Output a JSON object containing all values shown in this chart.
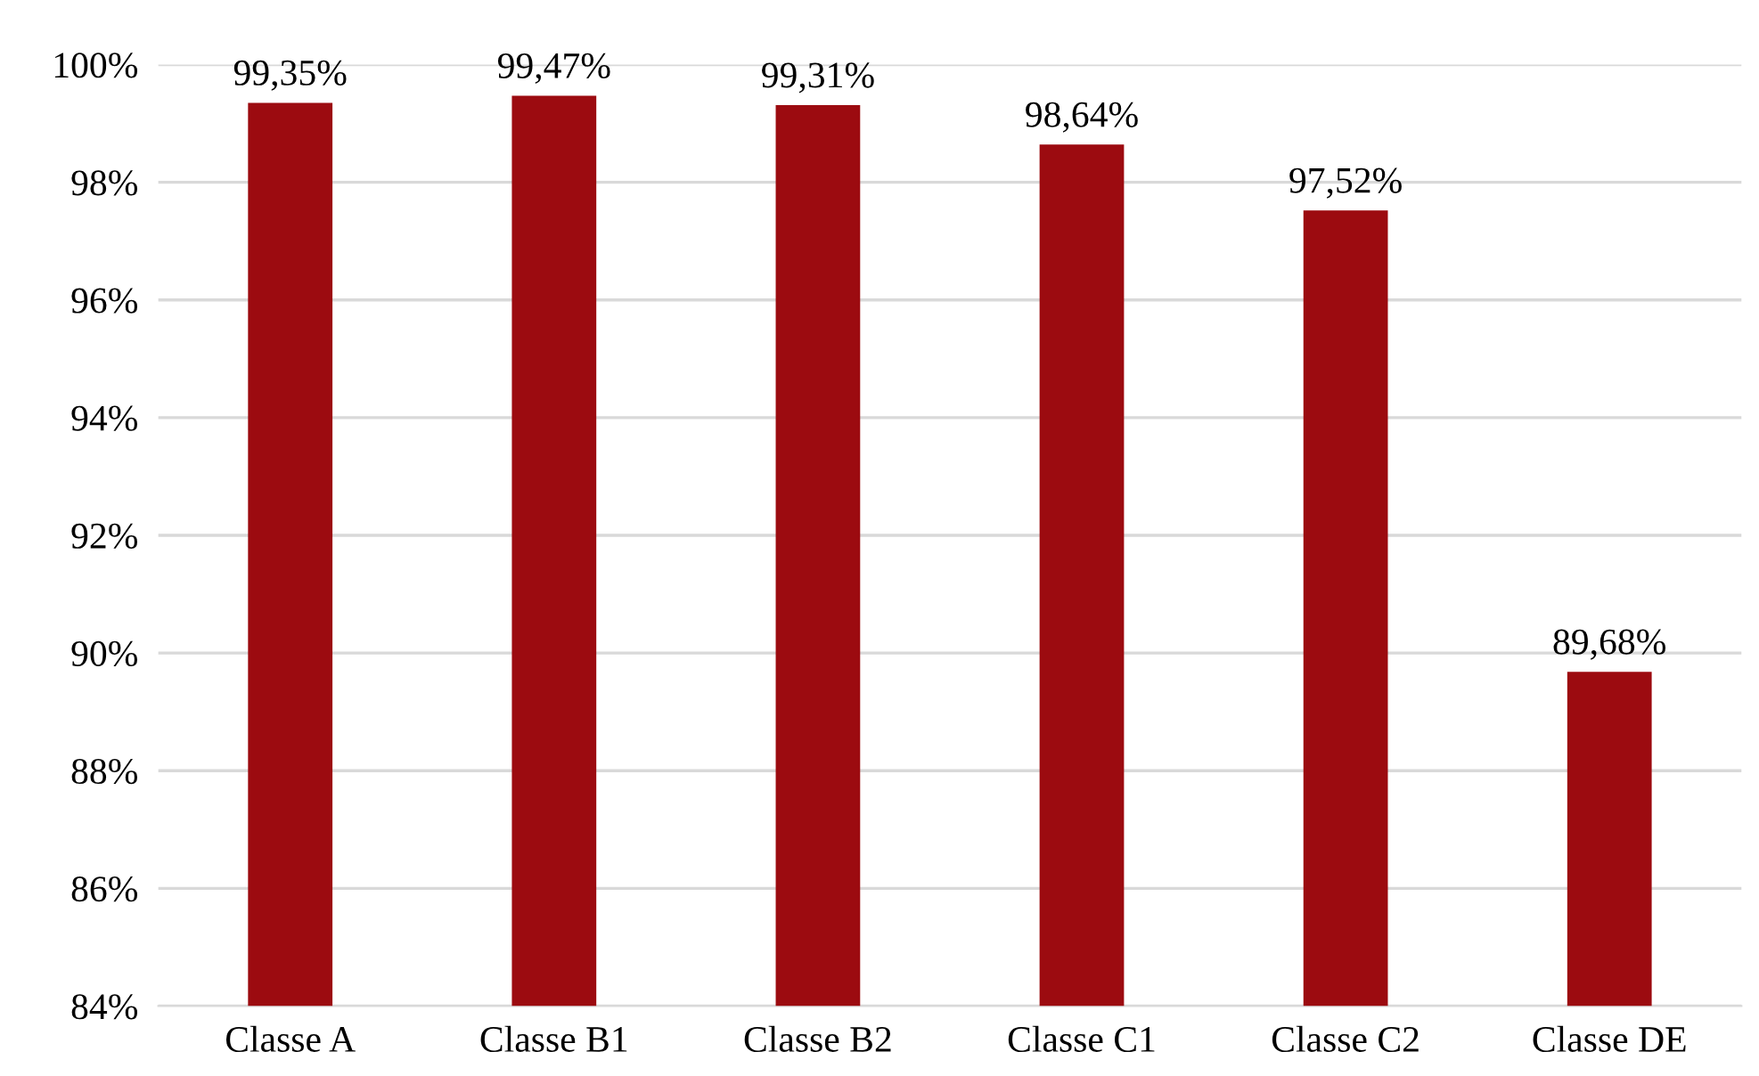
{
  "chart_data": {
    "type": "bar",
    "categories": [
      "Classe A",
      "Classe B1",
      "Classe B2",
      "Classe C1",
      "Classe C2",
      "Classe DE"
    ],
    "values": [
      99.35,
      99.47,
      99.31,
      98.64,
      97.52,
      89.68
    ],
    "value_labels": [
      "99,35%",
      "99,47%",
      "99,31%",
      "98,64%",
      "97,52%",
      "89,68%"
    ],
    "color": "#9c0b10",
    "ylim": [
      84,
      100
    ],
    "yticks": [
      {
        "value": 84,
        "label": "84%"
      },
      {
        "value": 86,
        "label": "86%"
      },
      {
        "value": 88,
        "label": "88%"
      },
      {
        "value": 90,
        "label": "90%"
      },
      {
        "value": 92,
        "label": "92%"
      },
      {
        "value": 94,
        "label": "94%"
      },
      {
        "value": 96,
        "label": "96%"
      },
      {
        "value": 98,
        "label": "98%"
      },
      {
        "value": 100,
        "label": "100%"
      }
    ],
    "grid": "y"
  }
}
